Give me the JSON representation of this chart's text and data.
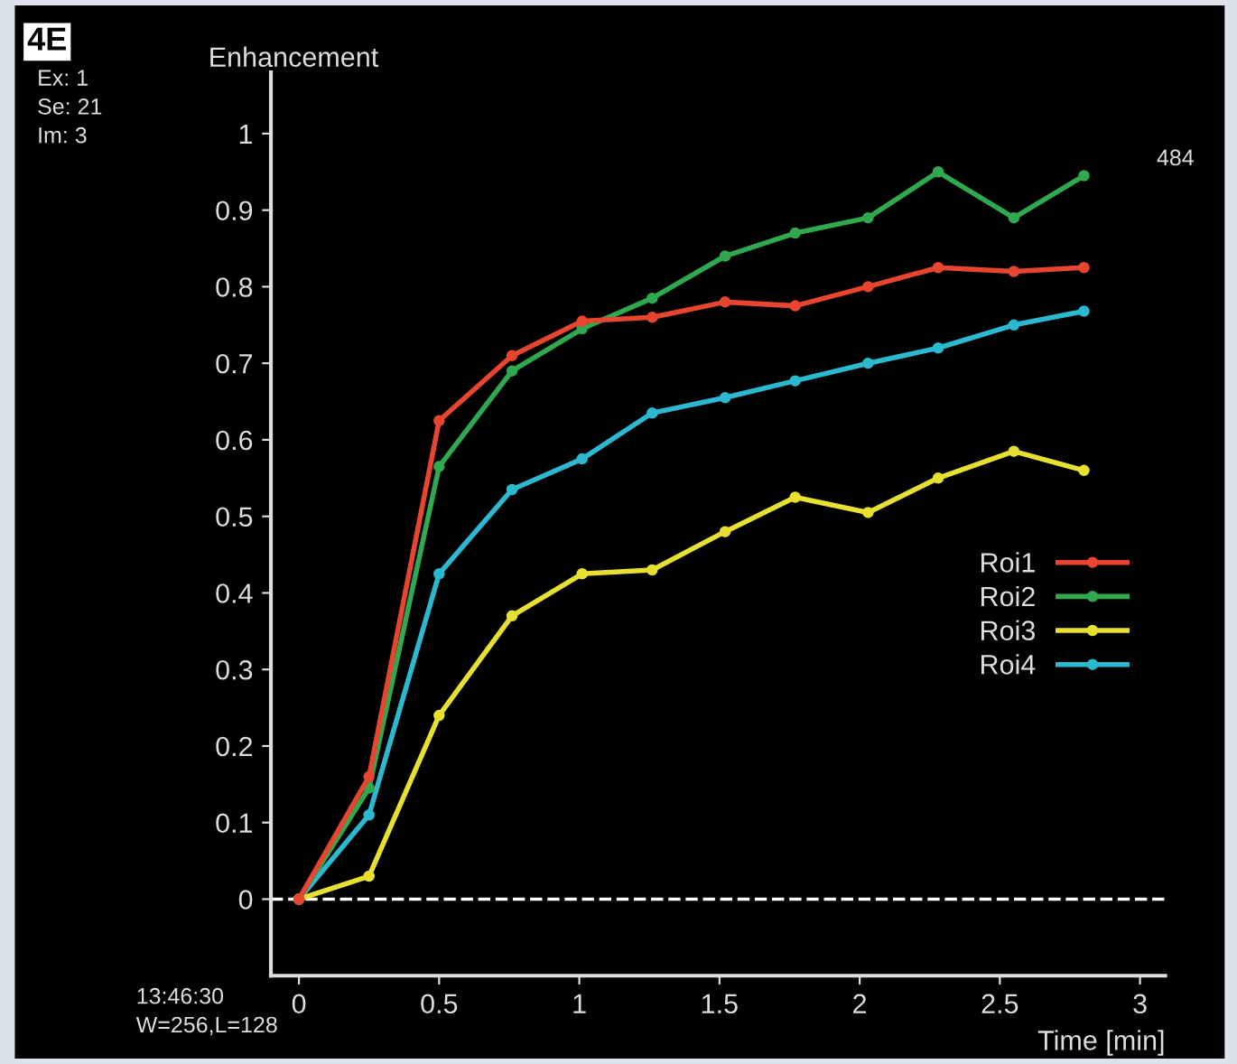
{
  "chart_data": {
    "type": "line",
    "ylabel": "Enhancement",
    "xlabel": "Time [min]",
    "x": [
      0,
      0.25,
      0.5,
      0.76,
      1.01,
      1.26,
      1.52,
      1.77,
      2.03,
      2.28,
      2.55,
      2.8
    ],
    "series": [
      {
        "name": "Roi1",
        "color": "#e8452f",
        "values": [
          0,
          0.16,
          0.625,
          0.71,
          0.755,
          0.76,
          0.78,
          0.775,
          0.8,
          0.825,
          0.82,
          0.825
        ]
      },
      {
        "name": "Roi2",
        "color": "#2fa84f",
        "values": [
          0,
          0.145,
          0.565,
          0.69,
          0.745,
          0.785,
          0.84,
          0.87,
          0.89,
          0.95,
          0.89,
          0.945
        ]
      },
      {
        "name": "Roi3",
        "color": "#e8e030",
        "values": [
          0,
          0.03,
          0.24,
          0.37,
          0.425,
          0.43,
          0.48,
          0.525,
          0.505,
          0.55,
          0.585,
          0.56
        ]
      },
      {
        "name": "Roi4",
        "color": "#2cb8d0",
        "values": [
          0,
          0.11,
          0.425,
          0.535,
          0.575,
          0.635,
          0.655,
          0.677,
          0.7,
          0.72,
          0.75,
          0.768
        ]
      }
    ],
    "xlim": [
      -0.1,
      3.09
    ],
    "ylim": [
      -0.1,
      1.08
    ],
    "xticks": [
      0,
      0.5,
      1,
      1.5,
      2,
      2.5,
      3
    ],
    "yticks": [
      0,
      0.1,
      0.2,
      0.3,
      0.4,
      0.5,
      0.6,
      0.7,
      0.8,
      0.9,
      1
    ],
    "ref_lines": [
      {
        "axis": "y",
        "value": 0,
        "color": "#ffffff",
        "line_style": "dashed"
      }
    ],
    "annotations": [
      "4E",
      "Ex: 1",
      "Se: 21",
      "Im: 3",
      "484",
      "13:46:30",
      "W=256,L=128"
    ],
    "legend": "bottom right",
    "marker": "circle",
    "line_style": "solid",
    "grid": false
  }
}
